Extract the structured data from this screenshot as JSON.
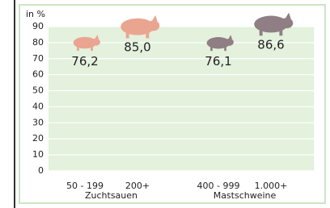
{
  "chart_data": {
    "type": "bar",
    "y_label": "in %",
    "categories": [
      "50 - 199",
      "200+",
      "400 - 999",
      "1.000+"
    ],
    "group_labels": [
      "Zuchtsauen",
      "Mastschweine"
    ],
    "values": [
      76.2,
      85.0,
      76.1,
      86.6
    ],
    "value_labels": [
      "76,2",
      "85,0",
      "76,1",
      "86,6"
    ],
    "colors": [
      "#e8b4a4",
      "#e8b4a4",
      "#a8949a",
      "#a8949a"
    ],
    "ylim": [
      0,
      90
    ],
    "yticks": [
      0,
      10,
      20,
      30,
      40,
      50,
      60,
      70,
      80,
      90
    ],
    "grid": true
  }
}
